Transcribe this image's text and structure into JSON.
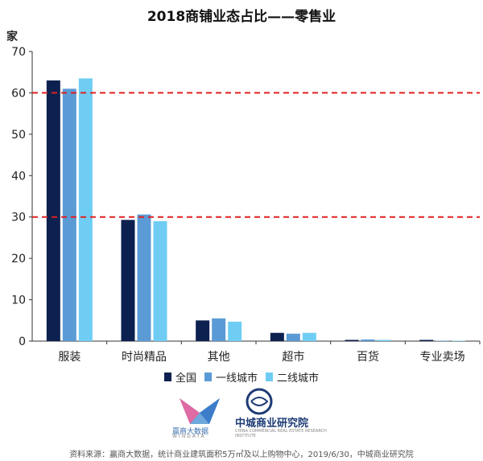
{
  "chart_data": {
    "type": "bar",
    "title": "2018商铺业态占比——零售业",
    "ylabel": "家",
    "ylim": [
      0,
      70
    ],
    "yticks": [
      0,
      10,
      20,
      30,
      40,
      50,
      60,
      70
    ],
    "categories": [
      "服装",
      "时尚精品",
      "其他",
      "超市",
      "百货",
      "专业卖场"
    ],
    "series": [
      {
        "name": "全国",
        "color": "#0d2150",
        "values": [
          63,
          29.3,
          5,
          2,
          0.3,
          0.3
        ]
      },
      {
        "name": "一线城市",
        "color": "#5b9bd5",
        "values": [
          61,
          30.6,
          5.5,
          1.8,
          0.4,
          0.1
        ]
      },
      {
        "name": "二线城市",
        "color": "#6fcdf3",
        "values": [
          63.5,
          29,
          4.7,
          2,
          0.3,
          0.1
        ]
      }
    ],
    "reference_lines": [
      {
        "y": 60,
        "color": "#e02020",
        "style": "dashed"
      },
      {
        "y": 30,
        "color": "#e02020",
        "style": "dashed"
      }
    ],
    "grid": false,
    "legend_position": "bottom"
  },
  "logos": {
    "logo1_name": "赢商大数据",
    "logo1_sub": "WINDATA",
    "logo2_name": "中城商业研究院",
    "logo2_sub": "CHINA COMMERCIAL REAL ESTATE RESEARCH INSTITUTE"
  },
  "source_text": "资料来源：赢商大数据，统计商业建筑面积5万㎡及以上购物中心，2019/6/30，中城商业研究院"
}
